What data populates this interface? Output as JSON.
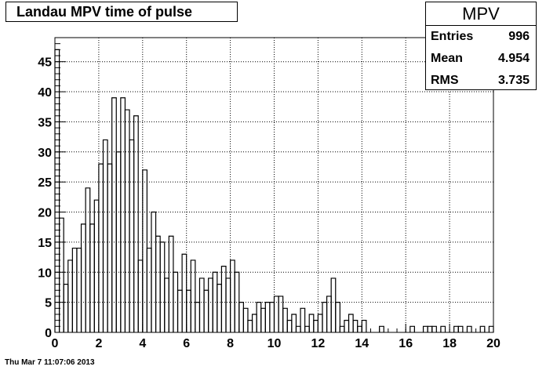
{
  "chart_data": {
    "type": "histogram",
    "title": "Landau MPV time of pulse",
    "xlim": [
      0,
      20
    ],
    "ylim": [
      0,
      49
    ],
    "x_ticks": [
      "0",
      "2",
      "4",
      "6",
      "8",
      "10",
      "12",
      "14",
      "16",
      "18",
      "20"
    ],
    "y_ticks": [
      "0",
      "5",
      "10",
      "15",
      "20",
      "25",
      "30",
      "35",
      "40",
      "45"
    ],
    "bin_width": 0.2,
    "values": [
      47,
      19,
      8,
      12,
      14,
      14,
      18,
      24,
      18,
      22,
      28,
      32,
      28,
      39,
      30,
      39,
      37,
      32,
      36,
      12,
      27,
      14,
      20,
      16,
      15,
      9,
      16,
      10,
      7,
      13,
      7,
      12,
      5,
      9,
      7,
      9,
      10,
      8,
      11,
      9,
      12,
      10,
      5,
      4,
      2,
      3,
      5,
      4,
      5,
      5,
      6,
      6,
      4,
      2,
      3,
      1,
      4,
      1,
      3,
      2,
      3,
      5,
      6,
      9,
      5,
      1,
      2,
      3,
      2,
      1,
      2,
      0,
      0,
      0,
      1,
      0,
      0,
      0,
      0,
      0,
      0,
      1,
      0,
      0,
      1,
      1,
      1,
      0,
      1,
      0,
      0,
      1,
      1,
      0,
      1,
      0,
      0,
      1,
      0,
      1
    ],
    "grid": true,
    "legend": "none"
  },
  "stats": {
    "name": "MPV",
    "rows": [
      {
        "label": "Entries",
        "value": "996"
      },
      {
        "label": "Mean",
        "value": "4.954"
      },
      {
        "label": "RMS",
        "value": "3.735"
      }
    ]
  },
  "footer": {
    "timestamp": "Thu Mar  7 11:07:06 2013"
  }
}
